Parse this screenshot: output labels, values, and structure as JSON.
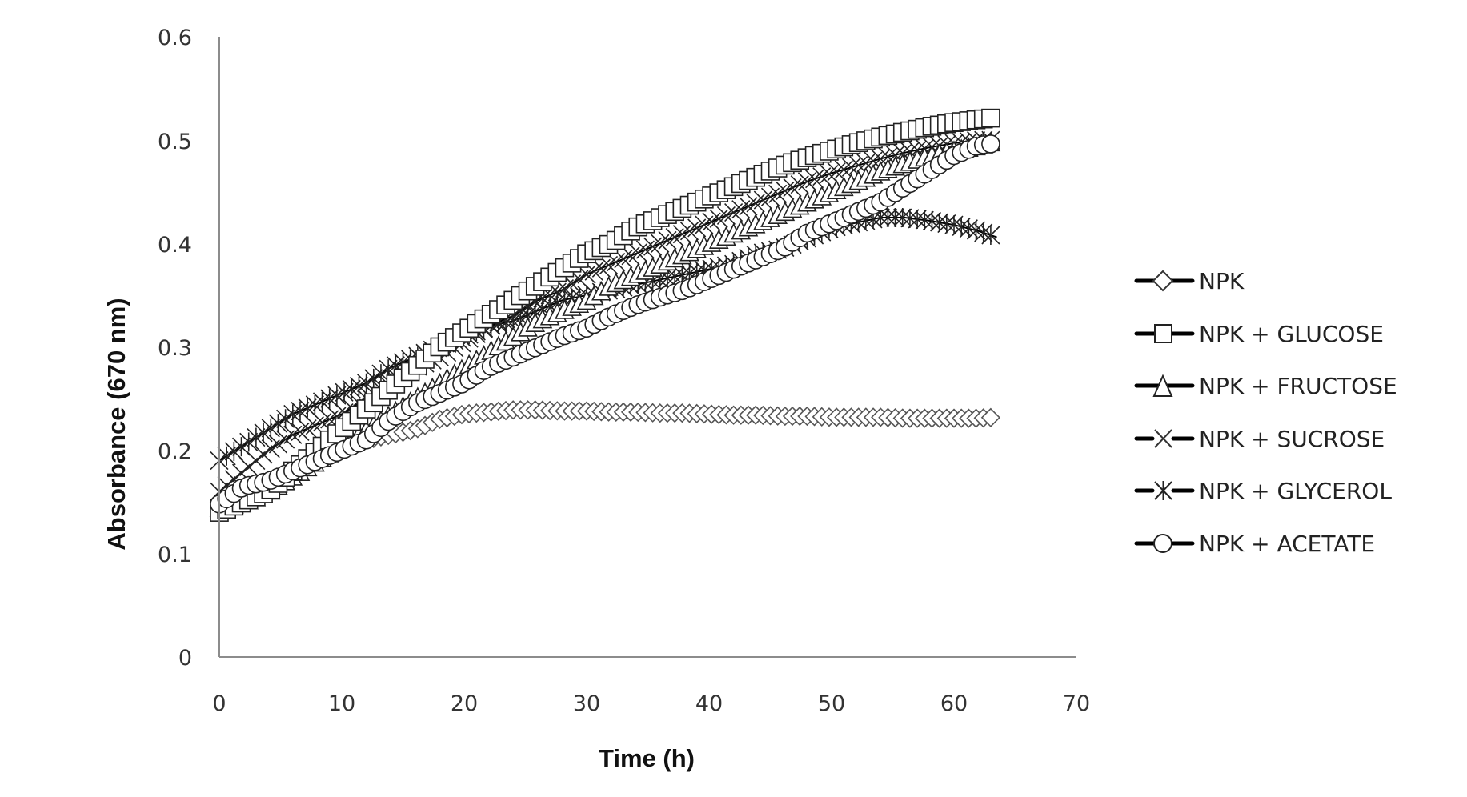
{
  "chart_data": {
    "type": "line",
    "title": "",
    "xlabel": "Time (h)",
    "ylabel": "Absorbance (670 nm)",
    "xlim": [
      0,
      70
    ],
    "ylim": [
      0,
      0.6
    ],
    "xticks": [
      0,
      10,
      20,
      30,
      40,
      50,
      60,
      70
    ],
    "yticks": [
      0,
      0.1,
      0.2,
      0.3,
      0.4,
      0.5,
      0.6
    ],
    "grid": false,
    "legend_position": "right",
    "x": [
      0,
      2,
      4,
      6,
      8,
      10,
      12,
      14,
      16,
      18,
      20,
      22,
      24,
      26,
      28,
      30,
      32,
      34,
      36,
      38,
      40,
      42,
      44,
      46,
      48,
      50,
      52,
      54,
      56,
      58,
      60,
      62,
      63.5
    ],
    "series": [
      {
        "name": "NPK",
        "marker": "diamond",
        "values": [
          0.15,
          0.16,
          0.17,
          0.18,
          0.19,
          0.2,
          0.21,
          0.215,
          0.22,
          0.23,
          0.235,
          0.237,
          0.239,
          0.239,
          0.238,
          0.238,
          0.237,
          0.237,
          0.236,
          0.236,
          0.235,
          0.234,
          0.234,
          0.233,
          0.233,
          0.232,
          0.232,
          0.232,
          0.231,
          0.231,
          0.231,
          0.231,
          0.232
        ]
      },
      {
        "name": "NPK + GLUCOSE",
        "marker": "square",
        "values": [
          0.14,
          0.15,
          0.16,
          0.18,
          0.2,
          0.22,
          0.24,
          0.26,
          0.28,
          0.3,
          0.315,
          0.33,
          0.345,
          0.36,
          0.375,
          0.39,
          0.4,
          0.415,
          0.425,
          0.435,
          0.445,
          0.455,
          0.465,
          0.475,
          0.483,
          0.49,
          0.497,
          0.503,
          0.508,
          0.513,
          0.517,
          0.52,
          0.522
        ]
      },
      {
        "name": "NPK + FRUCTOSE",
        "marker": "triangle",
        "values": [
          0.145,
          0.15,
          0.16,
          0.175,
          0.19,
          0.205,
          0.22,
          0.235,
          0.25,
          0.265,
          0.28,
          0.295,
          0.31,
          0.325,
          0.335,
          0.345,
          0.36,
          0.37,
          0.38,
          0.39,
          0.4,
          0.41,
          0.42,
          0.43,
          0.44,
          0.45,
          0.46,
          0.47,
          0.478,
          0.485,
          0.49,
          0.495,
          0.5
        ]
      },
      {
        "name": "NPK + SUCROSE",
        "marker": "x",
        "values": [
          0.16,
          0.18,
          0.2,
          0.215,
          0.225,
          0.235,
          0.25,
          0.265,
          0.28,
          0.29,
          0.305,
          0.32,
          0.33,
          0.345,
          0.355,
          0.37,
          0.38,
          0.39,
          0.4,
          0.41,
          0.42,
          0.43,
          0.44,
          0.45,
          0.46,
          0.468,
          0.475,
          0.482,
          0.488,
          0.493,
          0.497,
          0.5,
          0.5
        ]
      },
      {
        "name": "NPK + GLYCEROL",
        "marker": "asterisk",
        "values": [
          0.19,
          0.205,
          0.22,
          0.235,
          0.245,
          0.255,
          0.265,
          0.28,
          0.29,
          0.3,
          0.31,
          0.32,
          0.325,
          0.335,
          0.345,
          0.35,
          0.355,
          0.36,
          0.365,
          0.37,
          0.375,
          0.38,
          0.39,
          0.395,
          0.405,
          0.415,
          0.42,
          0.425,
          0.425,
          0.422,
          0.418,
          0.412,
          0.406
        ]
      },
      {
        "name": "NPK + ACETATE",
        "marker": "circle",
        "values": [
          0.148,
          0.165,
          0.17,
          0.18,
          0.19,
          0.2,
          0.21,
          0.23,
          0.245,
          0.255,
          0.265,
          0.28,
          0.29,
          0.3,
          0.31,
          0.318,
          0.33,
          0.34,
          0.348,
          0.355,
          0.365,
          0.375,
          0.385,
          0.395,
          0.41,
          0.42,
          0.43,
          0.44,
          0.455,
          0.47,
          0.485,
          0.495,
          0.497
        ]
      }
    ]
  },
  "axes": {
    "xlabel": "Time (h)",
    "ylabel": "Absorbance (670 nm)",
    "xtick_labels": [
      "0",
      "10",
      "20",
      "30",
      "40",
      "50",
      "60",
      "70"
    ],
    "ytick_labels": [
      "0",
      "0.1",
      "0.2",
      "0.3",
      "0.4",
      "0.5",
      "0.6"
    ]
  },
  "legend": {
    "items": [
      {
        "label": "NPK",
        "marker": "diamond-icon"
      },
      {
        "label": "NPK + GLUCOSE",
        "marker": "square-icon"
      },
      {
        "label": "NPK + FRUCTOSE",
        "marker": "triangle-icon"
      },
      {
        "label": "NPK + SUCROSE",
        "marker": "x-icon"
      },
      {
        "label": "NPK + GLYCEROL",
        "marker": "asterisk-icon"
      },
      {
        "label": "NPK + ACETATE",
        "marker": "circle-icon"
      }
    ]
  },
  "colors": {
    "axis": "#8c8c8c",
    "line": "#000000",
    "marker_stroke": "#222222",
    "npk_marker": "#555555"
  }
}
